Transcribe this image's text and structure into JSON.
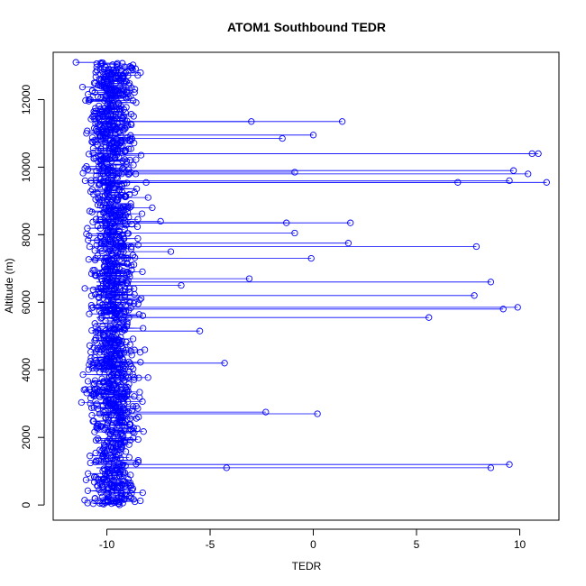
{
  "chart_data": {
    "type": "line",
    "title": "ATOM1 Southbound TEDR",
    "xlabel": "TEDR",
    "ylabel": "Altitude (m)",
    "xlim": [
      -12.6,
      11.9
    ],
    "ylim": [
      -450,
      13400
    ],
    "x_ticks": [
      -10,
      -5,
      0,
      5,
      10
    ],
    "y_ticks": [
      0,
      2000,
      4000,
      6000,
      8000,
      10000,
      12000
    ],
    "x_tick_labels": [
      "-10",
      "-5",
      "0",
      "5",
      "10"
    ],
    "y_tick_labels": [
      "0",
      "2000",
      "4000",
      "6000",
      "8000",
      "10000",
      "12000"
    ],
    "grid": false,
    "legend": "none",
    "color": "#0000ff",
    "marker": "open-circle",
    "series": [
      {
        "values_description": "Dense profile: bulk of points between TEDR -12 and -6 across altitudes 0–13100 m; isolated spikes to larger TEDR listed as [x, y].",
        "x": [
          -11.5,
          -10.8,
          -10.2,
          -9.6,
          -9.1,
          -8.6,
          -8.0,
          -7.4,
          -6.9,
          -6.4,
          -3.0,
          1.4,
          -1.5,
          0.0,
          10.6,
          10.9,
          -0.9,
          9.7,
          11.3,
          7.0,
          10.4,
          9.5,
          -7.8,
          -1.3,
          -0.9,
          1.8,
          1.7,
          7.9,
          -0.1,
          8.6,
          -3.1,
          9.2,
          7.8,
          9.9,
          5.6,
          -5.5,
          -4.3,
          -2.3,
          0.2,
          -4.2,
          8.6,
          9.5
        ],
        "y": [
          13100,
          12000,
          11500,
          11000,
          10500,
          9800,
          9100,
          8400,
          7500,
          6500,
          11350,
          11350,
          10850,
          10950,
          10400,
          10400,
          9850,
          9900,
          9550,
          9550,
          9800,
          9600,
          8800,
          8350,
          8050,
          8350,
          7750,
          7650,
          7300,
          6600,
          6700,
          5800,
          6200,
          5850,
          5550,
          5150,
          4200,
          2750,
          2700,
          1100,
          1100,
          1200
        ]
      }
    ]
  }
}
